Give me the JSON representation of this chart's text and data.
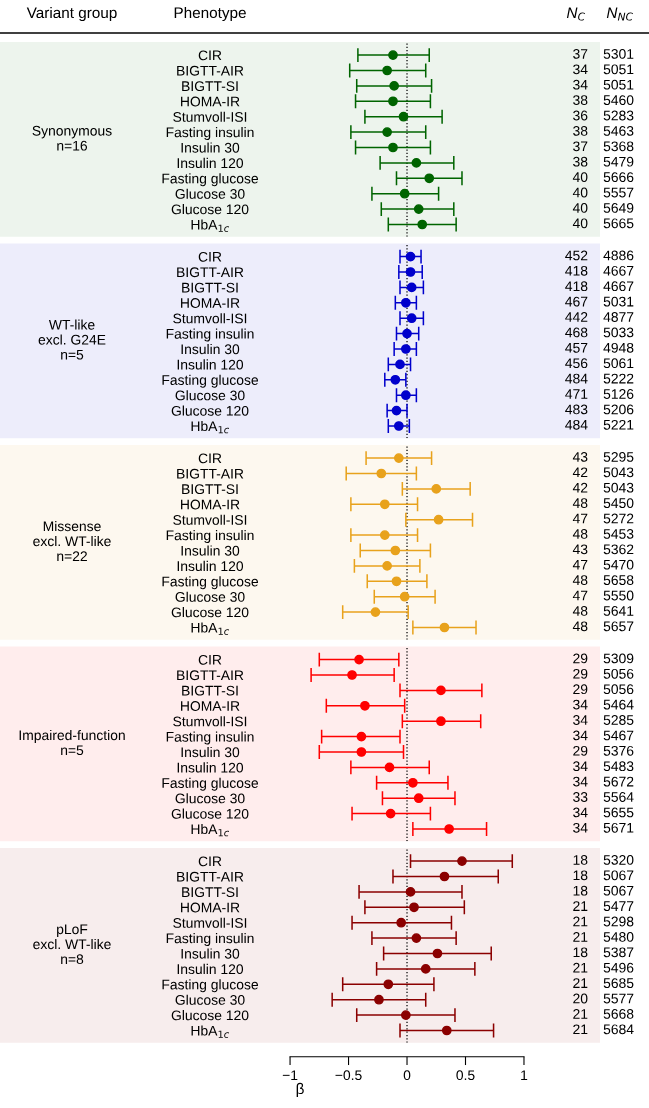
{
  "chart_data": [
    {
      "type": "scatter",
      "orientation": "horizontal",
      "marker": "circle",
      "color": "#006400",
      "ylabel": "Synonymous\nn=16",
      "categories": [
        "CIR",
        "BIGTT-AIR",
        "BIGTT-SI",
        "HOMA-IR",
        "Stumvoll-ISI",
        "Fasting insulin",
        "Insulin 30",
        "Insulin 120",
        "Fasting glucose",
        "Glucose 30",
        "Glucose 120",
        "HbA$_{1c}$"
      ],
      "values": [
        -0.12,
        -0.17,
        -0.11,
        -0.12,
        -0.03,
        -0.17,
        -0.12,
        0.08,
        0.19,
        -0.02,
        0.1,
        0.13
      ],
      "errors": [
        [
          -0.42,
          0.19
        ],
        [
          -0.49,
          0.16
        ],
        [
          -0.43,
          0.21
        ],
        [
          -0.44,
          0.2
        ],
        [
          -0.36,
          0.3
        ],
        [
          -0.48,
          0.16
        ],
        [
          -0.44,
          0.2
        ],
        [
          -0.23,
          0.4
        ],
        [
          -0.09,
          0.47
        ],
        [
          -0.3,
          0.27
        ],
        [
          -0.22,
          0.4
        ],
        [
          -0.16,
          0.42
        ]
      ],
      "xlim": [
        -3.48,
        1.65
      ],
      "tick_labels": false,
      "ref_lines": [
        {
          "axis": "x",
          "value": 0,
          "line_style": "dotted"
        }
      ],
      "annotations": [
        "Variant group",
        "Phenotype",
        "N$_{C}$",
        "N$_{NC}$",
        "37",
        "5301",
        "34",
        "5051",
        "34",
        "5051",
        "38",
        "5460",
        "36",
        "5283",
        "38",
        "5463",
        "37",
        "5368",
        "38",
        "5479",
        "40",
        "5666",
        "40",
        "5557",
        "40",
        "5649",
        "40",
        "5665"
      ]
    },
    {
      "type": "scatter",
      "orientation": "horizontal",
      "marker": "circle",
      "color": "#0000cc",
      "ylabel": "WT-like\nexcl. G24E\nn=5",
      "categories": [
        "CIR",
        "BIGTT-AIR",
        "BIGTT-SI",
        "HOMA-IR",
        "Stumvoll-ISI",
        "Fasting insulin",
        "Insulin 30",
        "Insulin 120",
        "Fasting glucose",
        "Glucose 30",
        "Glucose 120",
        "HbA$_{1c}$"
      ],
      "values": [
        0.03,
        0.03,
        0.04,
        -0.01,
        0.04,
        0.0,
        -0.01,
        -0.06,
        -0.1,
        -0.01,
        -0.09,
        -0.07
      ],
      "errors": [
        [
          -0.06,
          0.12
        ],
        [
          -0.07,
          0.13
        ],
        [
          -0.06,
          0.14
        ],
        [
          -0.1,
          0.08
        ],
        [
          -0.06,
          0.14
        ],
        [
          -0.09,
          0.1
        ],
        [
          -0.11,
          0.08
        ],
        [
          -0.16,
          0.03
        ],
        [
          -0.19,
          -0.01
        ],
        [
          -0.09,
          0.08
        ],
        [
          -0.17,
          0.0
        ],
        [
          -0.16,
          0.02
        ]
      ],
      "xlim": [
        -3.48,
        1.65
      ],
      "tick_labels": false,
      "ref_lines": [
        {
          "axis": "x",
          "value": 0,
          "line_style": "dotted"
        }
      ],
      "annotations": [
        "452",
        "4886",
        "418",
        "4667",
        "418",
        "4667",
        "467",
        "5031",
        "442",
        "4877",
        "468",
        "5033",
        "457",
        "4948",
        "456",
        "5061",
        "484",
        "5222",
        "471",
        "5126",
        "483",
        "5206",
        "484",
        "5221"
      ]
    },
    {
      "type": "scatter",
      "orientation": "horizontal",
      "marker": "circle",
      "color": "#e8a21c",
      "ylabel": "Missense\nexcl. WT-like\nn=22",
      "categories": [
        "CIR",
        "BIGTT-AIR",
        "BIGTT-SI",
        "HOMA-IR",
        "Stumvoll-ISI",
        "Fasting insulin",
        "Insulin 30",
        "Insulin 120",
        "Fasting glucose",
        "Glucose 30",
        "Glucose 120",
        "HbA$_{1c}$"
      ],
      "values": [
        -0.07,
        -0.22,
        0.25,
        -0.19,
        0.27,
        -0.19,
        -0.1,
        -0.17,
        -0.09,
        -0.02,
        -0.27,
        0.32
      ],
      "errors": [
        [
          -0.35,
          0.21
        ],
        [
          -0.52,
          0.08
        ],
        [
          -0.04,
          0.54
        ],
        [
          -0.48,
          0.09
        ],
        [
          -0.01,
          0.56
        ],
        [
          -0.48,
          0.09
        ],
        [
          -0.4,
          0.2
        ],
        [
          -0.45,
          0.11
        ],
        [
          -0.34,
          0.17
        ],
        [
          -0.28,
          0.24
        ],
        [
          -0.55,
          0.01
        ],
        [
          0.05,
          0.59
        ]
      ],
      "xlim": [
        -3.48,
        1.65
      ],
      "tick_labels": false,
      "ref_lines": [
        {
          "axis": "x",
          "value": 0,
          "line_style": "dotted"
        }
      ],
      "annotations": [
        "43",
        "5295",
        "42",
        "5043",
        "42",
        "5043",
        "48",
        "5450",
        "47",
        "5272",
        "48",
        "5453",
        "43",
        "5362",
        "47",
        "5470",
        "48",
        "5658",
        "47",
        "5550",
        "48",
        "5641",
        "48",
        "5657"
      ]
    },
    {
      "type": "scatter",
      "orientation": "horizontal",
      "marker": "circle",
      "color": "#ff0000",
      "ylabel": "Impaired-function\nn=5",
      "categories": [
        "CIR",
        "BIGTT-AIR",
        "BIGTT-SI",
        "HOMA-IR",
        "Stumvoll-ISI",
        "Fasting insulin",
        "Insulin 30",
        "Insulin 120",
        "Fasting glucose",
        "Glucose 30",
        "Glucose 120",
        "HbA$_{1c}$"
      ],
      "values": [
        -0.41,
        -0.47,
        0.29,
        -0.36,
        0.29,
        -0.39,
        -0.39,
        -0.15,
        0.05,
        0.1,
        -0.14,
        0.36
      ],
      "errors": [
        [
          -0.75,
          -0.07
        ],
        [
          -0.82,
          -0.11
        ],
        [
          -0.06,
          0.64
        ],
        [
          -0.69,
          -0.02
        ],
        [
          -0.04,
          0.63
        ],
        [
          -0.73,
          -0.06
        ],
        [
          -0.75,
          -0.03
        ],
        [
          -0.48,
          0.19
        ],
        [
          -0.26,
          0.35
        ],
        [
          -0.21,
          0.41
        ],
        [
          -0.47,
          0.2
        ],
        [
          0.05,
          0.68
        ]
      ],
      "xlim": [
        -3.48,
        1.65
      ],
      "tick_labels": false,
      "ref_lines": [
        {
          "axis": "x",
          "value": 0,
          "line_style": "dotted"
        }
      ],
      "annotations": [
        "29",
        "5309",
        "29",
        "5056",
        "29",
        "5056",
        "34",
        "5464",
        "34",
        "5285",
        "34",
        "5467",
        "29",
        "5376",
        "34",
        "5483",
        "34",
        "5672",
        "33",
        "5564",
        "34",
        "5655",
        "34",
        "5671"
      ]
    },
    {
      "type": "scatter",
      "orientation": "horizontal",
      "marker": "circle",
      "color": "#8b0000",
      "ylabel": "pLoF\nexcl. WT-like\nn=8",
      "xlabel": "β",
      "categories": [
        "CIR",
        "BIGTT-AIR",
        "BIGTT-SI",
        "HOMA-IR",
        "Stumvoll-ISI",
        "Fasting insulin",
        "Insulin 30",
        "Insulin 120",
        "Fasting glucose",
        "Glucose 30",
        "Glucose 120",
        "HbA$_{1c}$"
      ],
      "values": [
        0.47,
        0.32,
        0.03,
        0.06,
        -0.05,
        0.08,
        0.26,
        0.16,
        -0.16,
        -0.24,
        -0.01,
        0.34
      ],
      "errors": [
        [
          0.03,
          0.9
        ],
        [
          -0.12,
          0.78
        ],
        [
          -0.41,
          0.47
        ],
        [
          -0.36,
          0.49
        ],
        [
          -0.47,
          0.38
        ],
        [
          -0.3,
          0.42
        ],
        [
          -0.2,
          0.72
        ],
        [
          -0.26,
          0.58
        ],
        [
          -0.55,
          0.23
        ],
        [
          -0.64,
          0.16
        ],
        [
          -0.43,
          0.41
        ],
        [
          -0.06,
          0.74
        ]
      ],
      "xlim": [
        -3.48,
        1.65
      ],
      "xticks": [
        -1,
        -0.5,
        0,
        0.5,
        1
      ],
      "tick_labels": "x",
      "ref_lines": [
        {
          "axis": "x",
          "value": 0,
          "line_style": "dotted"
        }
      ],
      "annotations": [
        "18",
        "5320",
        "18",
        "5067",
        "18",
        "5067",
        "21",
        "5477",
        "21",
        "5298",
        "21",
        "5480",
        "18",
        "5387",
        "21",
        "5496",
        "21",
        "5685",
        "20",
        "5577",
        "21",
        "5668",
        "21",
        "5684"
      ]
    }
  ]
}
